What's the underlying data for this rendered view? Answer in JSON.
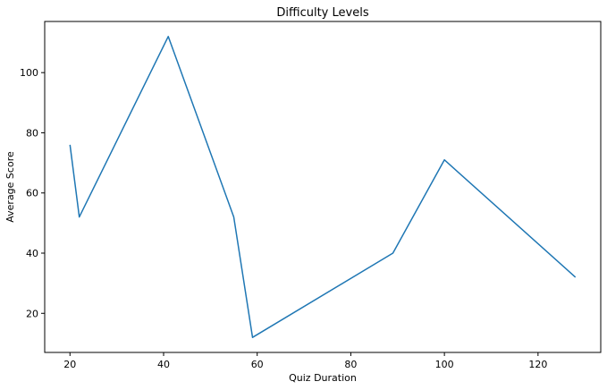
{
  "chart_data": {
    "type": "line",
    "title": "Difficulty Levels",
    "xlabel": "Quiz Duration",
    "ylabel": "Average Score",
    "x": [
      20,
      22,
      41,
      55,
      59,
      89,
      100,
      128
    ],
    "series": [
      {
        "values": [
          76,
          52,
          112,
          52,
          12,
          40,
          71,
          32
        ],
        "color": "#1f77b4"
      }
    ],
    "xlim": [
      14.6,
      133.4
    ],
    "ylim": [
      7,
      117
    ],
    "xticks": [
      20,
      40,
      60,
      80,
      100,
      120
    ],
    "yticks": [
      20,
      40,
      60,
      80,
      100
    ],
    "grid": false,
    "legend": "none"
  }
}
